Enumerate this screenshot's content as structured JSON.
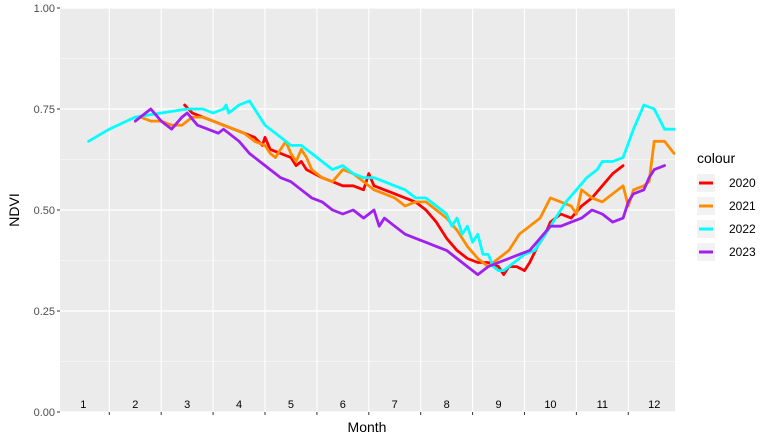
{
  "chart_data": {
    "type": "line",
    "xlabel": "Month",
    "ylabel": "NDVI",
    "ylim": [
      0,
      1
    ],
    "y_ticks": [
      "0.00",
      "0.25",
      "0.50",
      "0.75",
      "1.00"
    ],
    "xlim": [
      0.55,
      12.4
    ],
    "month_labels": [
      "1",
      "2",
      "3",
      "4",
      "5",
      "6",
      "7",
      "8",
      "9",
      "10",
      "11",
      "12"
    ],
    "grid": true,
    "legend_title": "colour",
    "legend_position": "right",
    "series": [
      {
        "name": "2020",
        "color": "#ff0000",
        "x": [
          2.95,
          3.1,
          3.3,
          3.5,
          3.7,
          3.9,
          4.1,
          4.3,
          4.45,
          4.5,
          4.6,
          4.8,
          5.0,
          5.1,
          5.2,
          5.3,
          5.45,
          5.6,
          5.8,
          6.0,
          6.2,
          6.4,
          6.5,
          6.6,
          6.8,
          7.0,
          7.2,
          7.4,
          7.6,
          7.8,
          8.0,
          8.2,
          8.4,
          8.6,
          8.8,
          9.0,
          9.1,
          9.2,
          9.35,
          9.5,
          9.6,
          9.75,
          9.9,
          10.0,
          10.2,
          10.4,
          10.6,
          10.8,
          11.0,
          11.2,
          11.4
        ],
        "values": [
          0.76,
          0.74,
          0.73,
          0.72,
          0.71,
          0.7,
          0.69,
          0.68,
          0.66,
          0.68,
          0.65,
          0.64,
          0.63,
          0.61,
          0.62,
          0.6,
          0.59,
          0.58,
          0.57,
          0.56,
          0.56,
          0.55,
          0.59,
          0.56,
          0.55,
          0.54,
          0.53,
          0.52,
          0.5,
          0.47,
          0.43,
          0.4,
          0.38,
          0.37,
          0.37,
          0.36,
          0.34,
          0.36,
          0.36,
          0.35,
          0.37,
          0.41,
          0.44,
          0.47,
          0.49,
          0.48,
          0.51,
          0.53,
          0.56,
          0.59,
          0.61
        ]
      },
      {
        "name": "2021",
        "color": "#ff8c00",
        "x": [
          2.1,
          2.3,
          2.5,
          2.7,
          2.9,
          3.0,
          3.1,
          3.3,
          3.5,
          3.7,
          3.9,
          4.1,
          4.3,
          4.5,
          4.6,
          4.7,
          4.9,
          5.0,
          5.1,
          5.2,
          5.3,
          5.4,
          5.6,
          5.8,
          6.0,
          6.2,
          6.4,
          6.6,
          6.8,
          7.0,
          7.2,
          7.4,
          7.6,
          7.8,
          8.0,
          8.2,
          8.4,
          8.6,
          8.8,
          9.0,
          9.2,
          9.4,
          9.6,
          9.8,
          10.0,
          10.2,
          10.4,
          10.5,
          10.6,
          10.8,
          11.0,
          11.2,
          11.4,
          11.5,
          11.6,
          11.8,
          11.9,
          12.0,
          12.2,
          12.38
        ],
        "values": [
          0.73,
          0.72,
          0.72,
          0.71,
          0.71,
          0.72,
          0.73,
          0.73,
          0.72,
          0.71,
          0.7,
          0.69,
          0.67,
          0.66,
          0.64,
          0.63,
          0.67,
          0.64,
          0.62,
          0.65,
          0.63,
          0.6,
          0.58,
          0.57,
          0.6,
          0.59,
          0.57,
          0.55,
          0.54,
          0.53,
          0.51,
          0.52,
          0.52,
          0.5,
          0.48,
          0.45,
          0.41,
          0.38,
          0.36,
          0.38,
          0.4,
          0.44,
          0.46,
          0.48,
          0.53,
          0.52,
          0.51,
          0.49,
          0.55,
          0.53,
          0.52,
          0.54,
          0.56,
          0.51,
          0.55,
          0.56,
          0.57,
          0.67,
          0.67,
          0.64
        ]
      },
      {
        "name": "2022",
        "color": "#00ffff",
        "x": [
          1.1,
          1.5,
          2.0,
          2.5,
          3.0,
          3.3,
          3.5,
          3.7,
          3.75,
          3.8,
          4.0,
          4.2,
          4.3,
          4.5,
          4.7,
          4.9,
          5.0,
          5.2,
          5.4,
          5.6,
          5.8,
          6.0,
          6.2,
          6.4,
          6.6,
          6.8,
          7.0,
          7.2,
          7.4,
          7.6,
          7.8,
          8.0,
          8.1,
          8.2,
          8.3,
          8.4,
          8.5,
          8.6,
          8.7,
          8.8,
          8.9,
          9.0,
          9.1,
          9.3,
          9.5,
          9.7,
          9.9,
          10.1,
          10.3,
          10.5,
          10.7,
          10.9,
          11.0,
          11.2,
          11.4,
          11.6,
          11.8,
          12.0,
          12.2,
          12.38
        ],
        "values": [
          0.67,
          0.7,
          0.73,
          0.74,
          0.75,
          0.75,
          0.74,
          0.75,
          0.76,
          0.74,
          0.76,
          0.77,
          0.75,
          0.71,
          0.69,
          0.67,
          0.66,
          0.66,
          0.64,
          0.62,
          0.6,
          0.61,
          0.59,
          0.58,
          0.58,
          0.57,
          0.56,
          0.55,
          0.53,
          0.53,
          0.51,
          0.49,
          0.46,
          0.48,
          0.44,
          0.46,
          0.42,
          0.44,
          0.39,
          0.39,
          0.36,
          0.35,
          0.35,
          0.37,
          0.39,
          0.4,
          0.44,
          0.48,
          0.52,
          0.55,
          0.58,
          0.6,
          0.62,
          0.62,
          0.63,
          0.7,
          0.76,
          0.75,
          0.7,
          0.7
        ]
      },
      {
        "name": "2023",
        "color": "#a020f0",
        "x": [
          2.0,
          2.2,
          2.3,
          2.5,
          2.7,
          2.9,
          3.0,
          3.2,
          3.4,
          3.6,
          3.7,
          3.8,
          4.0,
          4.2,
          4.4,
          4.6,
          4.8,
          5.0,
          5.2,
          5.4,
          5.6,
          5.8,
          6.0,
          6.2,
          6.4,
          6.6,
          6.7,
          6.8,
          7.0,
          7.2,
          7.4,
          7.6,
          7.8,
          8.0,
          8.2,
          8.4,
          8.6,
          8.8,
          9.0,
          9.2,
          9.4,
          9.6,
          9.8,
          10.0,
          10.2,
          10.4,
          10.6,
          10.8,
          11.0,
          11.2,
          11.4,
          11.5,
          11.6,
          11.8,
          11.9,
          12.0,
          12.2
        ],
        "values": [
          0.72,
          0.74,
          0.75,
          0.72,
          0.7,
          0.73,
          0.74,
          0.71,
          0.7,
          0.69,
          0.7,
          0.69,
          0.67,
          0.64,
          0.62,
          0.6,
          0.58,
          0.57,
          0.55,
          0.53,
          0.52,
          0.5,
          0.49,
          0.5,
          0.48,
          0.5,
          0.46,
          0.48,
          0.46,
          0.44,
          0.43,
          0.42,
          0.41,
          0.4,
          0.38,
          0.36,
          0.34,
          0.36,
          0.37,
          0.38,
          0.39,
          0.4,
          0.43,
          0.46,
          0.46,
          0.47,
          0.48,
          0.5,
          0.49,
          0.47,
          0.48,
          0.52,
          0.54,
          0.55,
          0.58,
          0.6,
          0.61
        ]
      }
    ]
  }
}
